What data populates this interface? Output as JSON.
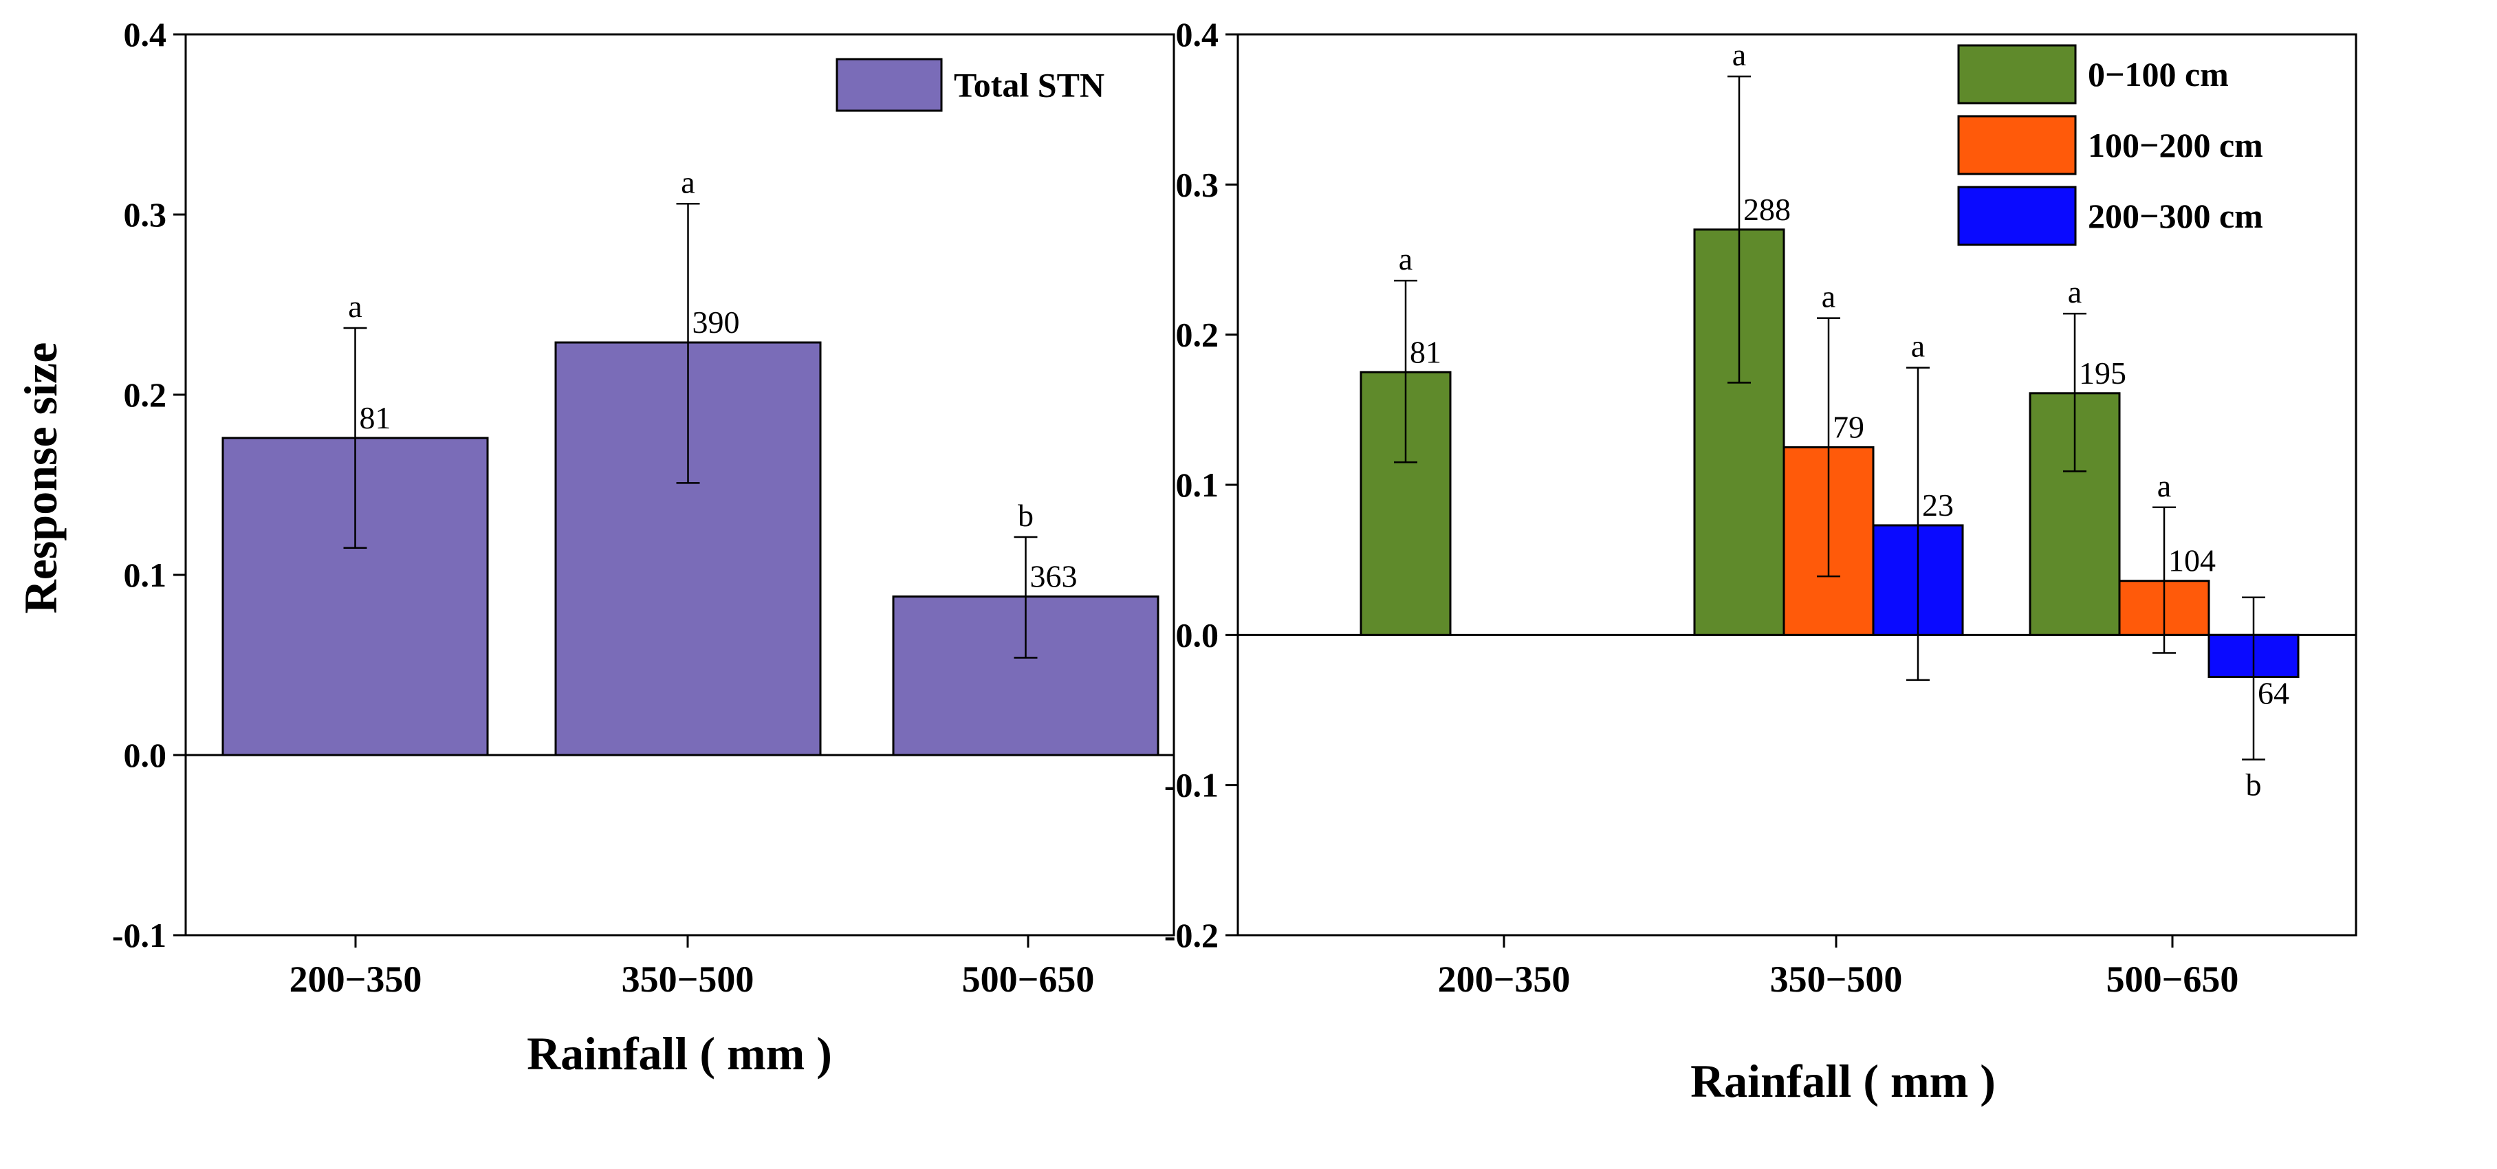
{
  "chart_data": [
    {
      "type": "bar",
      "categories": [
        "200−350",
        "350−500",
        "500−650"
      ],
      "xlabel": "Rainfall ( mm )",
      "ylabel": "Response size",
      "ylim": [
        -0.1,
        0.4
      ],
      "yticks": [
        -0.1,
        0.0,
        0.1,
        0.2,
        0.3,
        0.4
      ],
      "ytick_labels": [
        "-0.1",
        "0.0",
        "0.1",
        "0.2",
        "0.3",
        "0.4"
      ],
      "grid": false,
      "legend_position": "top-right",
      "series": [
        {
          "name": "Total STN",
          "color": "#7a6cb8",
          "values": [
            0.176,
            0.229,
            0.088
          ],
          "error": [
            [
              0.115,
              0.237
            ],
            [
              0.151,
              0.306
            ],
            [
              0.054,
              0.121
            ]
          ],
          "counts": [
            "81",
            "390",
            "363"
          ],
          "letters": [
            "a",
            "a",
            "b"
          ]
        }
      ]
    },
    {
      "type": "bar",
      "categories": [
        "200−350",
        "350−500",
        "500−650"
      ],
      "xlabel": "Rainfall ( mm )",
      "ylabel": "",
      "ylim": [
        -0.2,
        0.4
      ],
      "yticks": [
        -0.2,
        -0.1,
        0.0,
        0.1,
        0.2,
        0.3,
        0.4
      ],
      "ytick_labels": [
        "-0.2",
        "-0.1",
        "0.0",
        "0.1",
        "0.2",
        "0.3",
        "0.4"
      ],
      "grid": false,
      "legend_position": "top-right",
      "series": [
        {
          "name": "0−100 cm",
          "color": "#5f8a2b",
          "values": [
            0.175,
            0.27,
            0.161
          ],
          "error": [
            [
              0.115,
              0.236
            ],
            [
              0.168,
              0.372
            ],
            [
              0.109,
              0.214
            ]
          ],
          "counts": [
            "81",
            "288",
            "195"
          ],
          "letters": [
            "a",
            "a",
            "a"
          ]
        },
        {
          "name": "100−200 cm",
          "color": "#ff5a0a",
          "values": [
            null,
            0.125,
            0.036
          ],
          "error": [
            null,
            [
              0.039,
              0.211
            ],
            [
              -0.012,
              0.085
            ]
          ],
          "counts": [
            "",
            "79",
            "104"
          ],
          "letters": [
            "",
            "a",
            "a"
          ]
        },
        {
          "name": "200−300 cm",
          "color": "#0a0aff",
          "values": [
            null,
            0.073,
            -0.028
          ],
          "error": [
            null,
            [
              -0.03,
              0.178
            ],
            [
              -0.083,
              0.025
            ]
          ],
          "counts": [
            "",
            "23",
            "64"
          ],
          "letters": [
            "",
            "a",
            "b"
          ]
        }
      ]
    }
  ]
}
